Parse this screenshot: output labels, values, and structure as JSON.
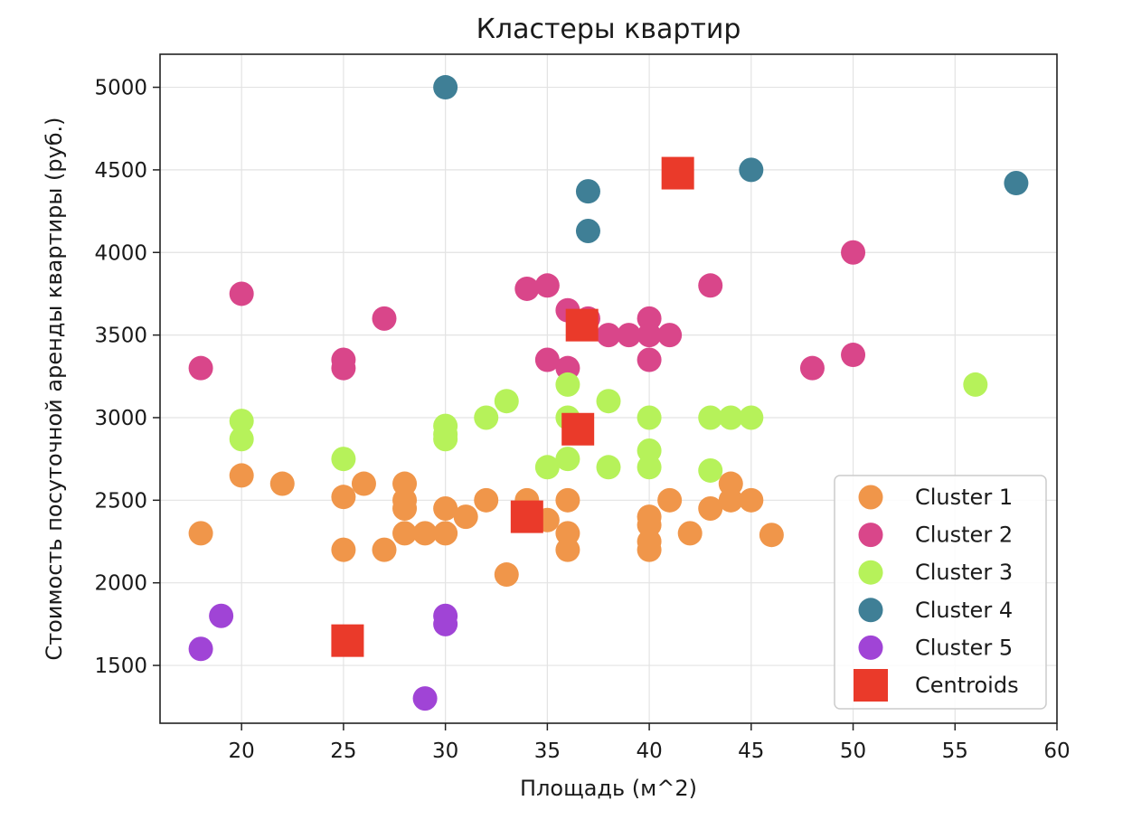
{
  "chart_data": {
    "type": "scatter",
    "title": "Кластеры квартир",
    "xlabel": "Площадь (м^2)",
    "ylabel": "Стоимость посуточной аренды квартиры (руб.)",
    "xlim": [
      16,
      60
    ],
    "ylim": [
      1150,
      5200
    ],
    "xticks": [
      20,
      25,
      30,
      35,
      40,
      45,
      50,
      55,
      60
    ],
    "yticks": [
      1500,
      2000,
      2500,
      3000,
      3500,
      4000,
      4500,
      5000
    ],
    "grid": true,
    "legend_position": "lower right",
    "series": [
      {
        "name": "Cluster 1",
        "color": "#f0964a",
        "marker": "circle",
        "points": [
          [
            18,
            2300
          ],
          [
            20,
            2650
          ],
          [
            22,
            2600
          ],
          [
            25,
            2520
          ],
          [
            25,
            2200
          ],
          [
            26,
            2600
          ],
          [
            27,
            2200
          ],
          [
            28,
            2600
          ],
          [
            28,
            2500
          ],
          [
            28,
            2450
          ],
          [
            28,
            2300
          ],
          [
            29,
            2300
          ],
          [
            30,
            2450
          ],
          [
            30,
            2300
          ],
          [
            31,
            2400
          ],
          [
            32,
            2500
          ],
          [
            33,
            2050
          ],
          [
            34,
            2500
          ],
          [
            35,
            2380
          ],
          [
            36,
            2500
          ],
          [
            36,
            2300
          ],
          [
            36,
            2200
          ],
          [
            40,
            2400
          ],
          [
            40,
            2350
          ],
          [
            40,
            2250
          ],
          [
            40,
            2200
          ],
          [
            41,
            2500
          ],
          [
            42,
            2300
          ],
          [
            43,
            2450
          ],
          [
            44,
            2600
          ],
          [
            44,
            2500
          ],
          [
            45,
            2500
          ],
          [
            46,
            2290
          ]
        ]
      },
      {
        "name": "Cluster 2",
        "color": "#d9468a",
        "marker": "circle",
        "points": [
          [
            18,
            3300
          ],
          [
            20,
            3750
          ],
          [
            25,
            3350
          ],
          [
            25,
            3300
          ],
          [
            27,
            3600
          ],
          [
            34,
            3780
          ],
          [
            35,
            3800
          ],
          [
            35,
            3350
          ],
          [
            36,
            3650
          ],
          [
            36,
            3300
          ],
          [
            37,
            3600
          ],
          [
            38,
            3500
          ],
          [
            39,
            3500
          ],
          [
            40,
            3600
          ],
          [
            40,
            3500
          ],
          [
            40,
            3350
          ],
          [
            41,
            3500
          ],
          [
            43,
            3800
          ],
          [
            48,
            3300
          ],
          [
            50,
            4000
          ],
          [
            50,
            3380
          ]
        ]
      },
      {
        "name": "Cluster 3",
        "color": "#b6f25a",
        "marker": "circle",
        "points": [
          [
            20,
            2980
          ],
          [
            20,
            2870
          ],
          [
            25,
            2750
          ],
          [
            30,
            2950
          ],
          [
            30,
            2900
          ],
          [
            30,
            2870
          ],
          [
            32,
            3000
          ],
          [
            33,
            3100
          ],
          [
            35,
            2700
          ],
          [
            36,
            3200
          ],
          [
            36,
            3000
          ],
          [
            36,
            2750
          ],
          [
            38,
            3100
          ],
          [
            38,
            2700
          ],
          [
            40,
            3000
          ],
          [
            40,
            2800
          ],
          [
            40,
            2700
          ],
          [
            43,
            3000
          ],
          [
            43,
            2680
          ],
          [
            44,
            3000
          ],
          [
            45,
            3000
          ],
          [
            56,
            3200
          ]
        ]
      },
      {
        "name": "Cluster 4",
        "color": "#3f7f96",
        "marker": "circle",
        "points": [
          [
            30,
            5000
          ],
          [
            37,
            4370
          ],
          [
            37,
            4130
          ],
          [
            45,
            4500
          ],
          [
            58,
            4420
          ]
        ]
      },
      {
        "name": "Cluster 5",
        "color": "#a044d6",
        "marker": "circle",
        "points": [
          [
            18,
            1600
          ],
          [
            19,
            1800
          ],
          [
            29,
            1300
          ],
          [
            30,
            1800
          ],
          [
            30,
            1750
          ]
        ]
      },
      {
        "name": "Centroids",
        "color": "#ea3a2a",
        "marker": "square",
        "points": [
          [
            41.4,
            4480
          ],
          [
            36.7,
            3560
          ],
          [
            36.5,
            2930
          ],
          [
            34.0,
            2400
          ],
          [
            25.2,
            1650
          ]
        ]
      }
    ]
  }
}
